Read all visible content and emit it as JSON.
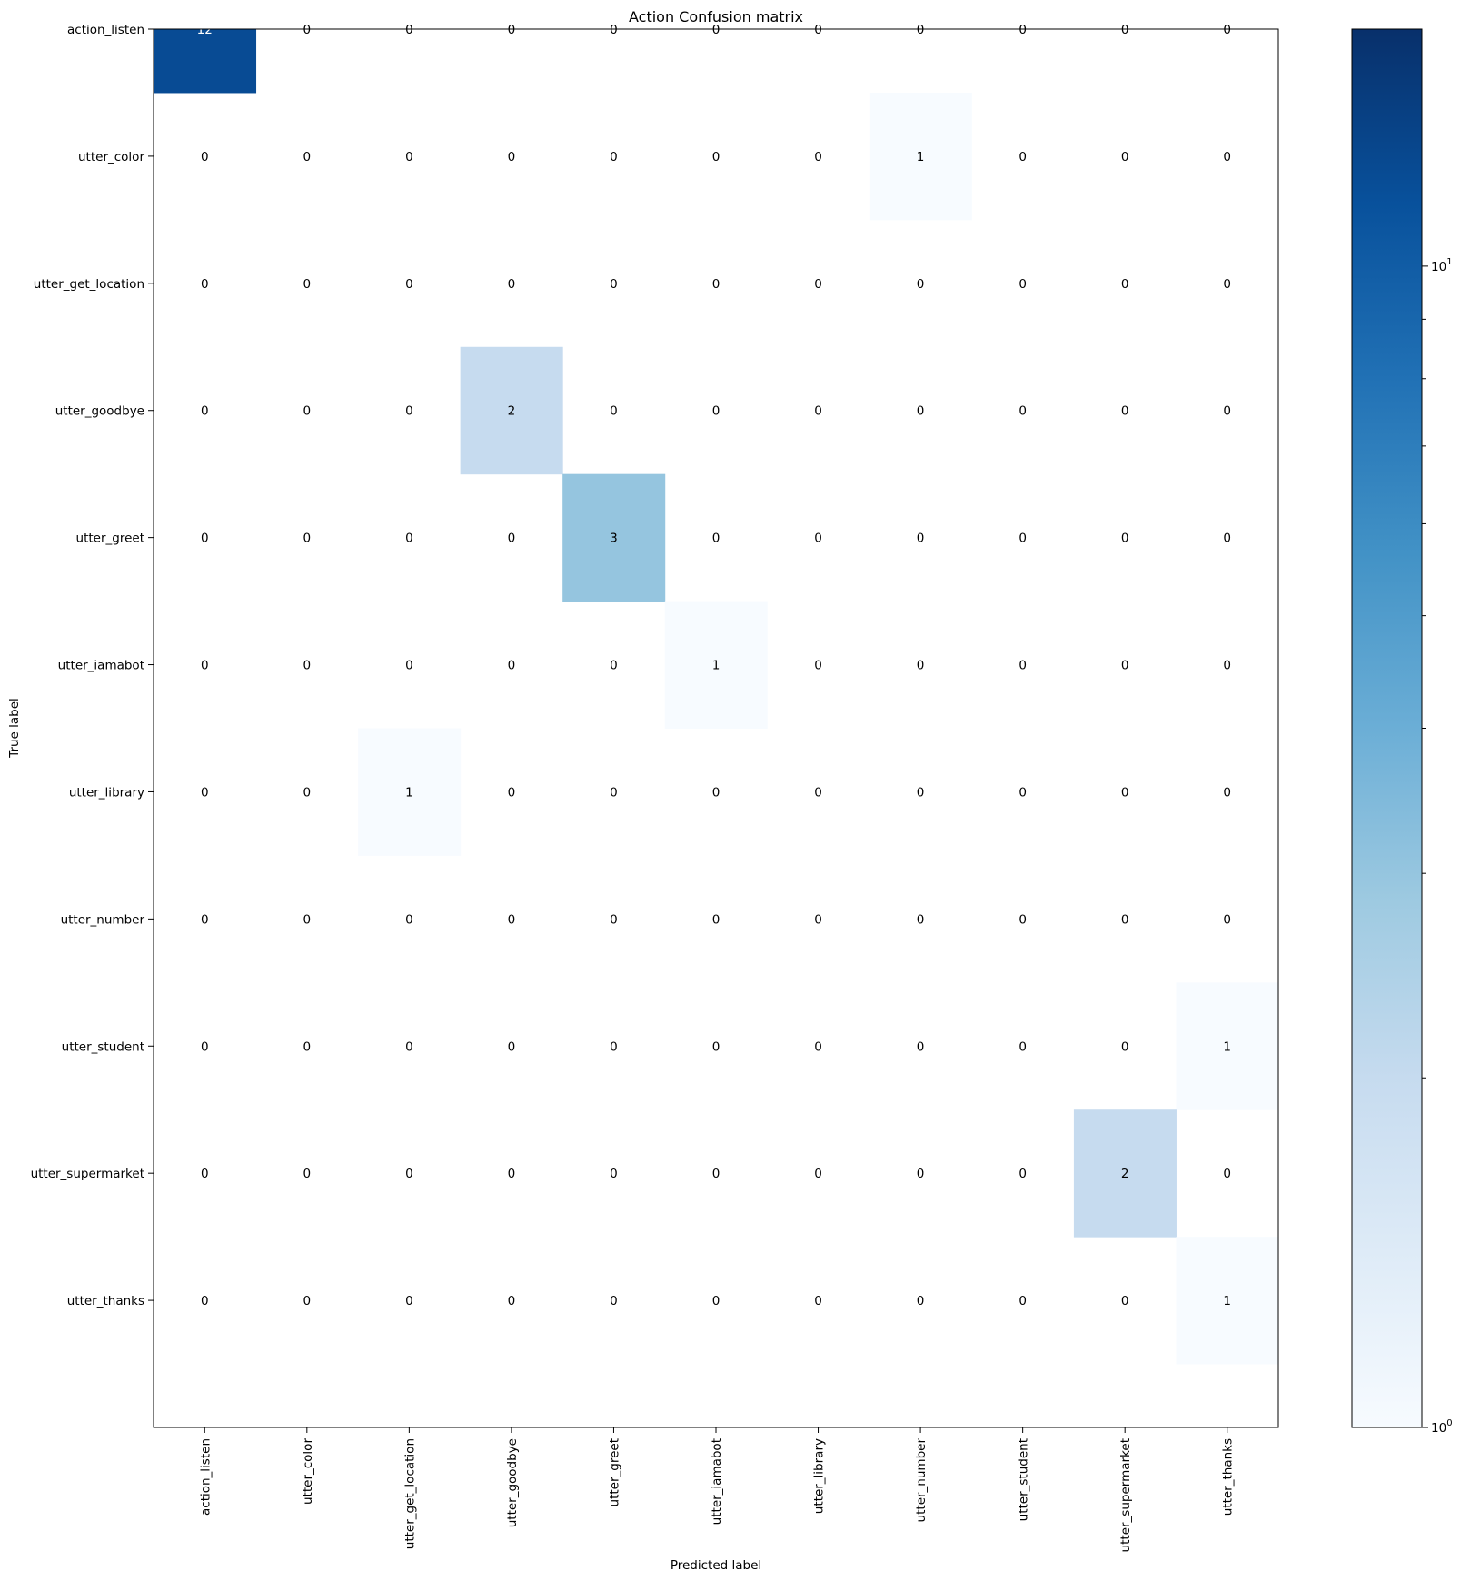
{
  "chart_data": {
    "type": "heatmap",
    "title": "Action Confusion matrix",
    "xlabel": "Predicted label",
    "ylabel": "True label",
    "x_categories": [
      "action_listen",
      "utter_color",
      "utter_get_location",
      "utter_goodbye",
      "utter_greet",
      "utter_iamabot",
      "utter_library",
      "utter_number",
      "utter_student",
      "utter_supermarket",
      "utter_thanks"
    ],
    "y_categories": [
      "action_listen",
      "utter_color",
      "utter_get_location",
      "utter_goodbye",
      "utter_greet",
      "utter_iamabot",
      "utter_library",
      "utter_number",
      "utter_student",
      "utter_supermarket",
      "utter_thanks"
    ],
    "matrix": [
      [
        12,
        0,
        0,
        0,
        0,
        0,
        0,
        0,
        0,
        0,
        0
      ],
      [
        0,
        0,
        0,
        0,
        0,
        0,
        0,
        1,
        0,
        0,
        0
      ],
      [
        0,
        0,
        0,
        0,
        0,
        0,
        0,
        0,
        0,
        0,
        0
      ],
      [
        0,
        0,
        0,
        2,
        0,
        0,
        0,
        0,
        0,
        0,
        0
      ],
      [
        0,
        0,
        0,
        0,
        3,
        0,
        0,
        0,
        0,
        0,
        0
      ],
      [
        0,
        0,
        0,
        0,
        0,
        1,
        0,
        0,
        0,
        0,
        0
      ],
      [
        0,
        0,
        1,
        0,
        0,
        0,
        0,
        0,
        0,
        0,
        0
      ],
      [
        0,
        0,
        0,
        0,
        0,
        0,
        0,
        0,
        0,
        0,
        0
      ],
      [
        0,
        0,
        0,
        0,
        0,
        0,
        0,
        0,
        0,
        0,
        1
      ],
      [
        0,
        0,
        0,
        0,
        0,
        0,
        0,
        0,
        0,
        2,
        0
      ],
      [
        0,
        0,
        0,
        0,
        0,
        0,
        0,
        0,
        0,
        0,
        1
      ]
    ],
    "color_scale": "log",
    "colormap": "Blues",
    "colorbar": {
      "range": [
        1,
        16
      ],
      "major_ticks": [
        {
          "value": 1,
          "base": "10",
          "exp": "0"
        },
        {
          "value": 10,
          "base": "10",
          "exp": "1"
        }
      ],
      "minor_ticks": [
        2,
        3,
        4,
        5,
        6,
        7,
        8,
        9
      ]
    },
    "grid": false
  }
}
